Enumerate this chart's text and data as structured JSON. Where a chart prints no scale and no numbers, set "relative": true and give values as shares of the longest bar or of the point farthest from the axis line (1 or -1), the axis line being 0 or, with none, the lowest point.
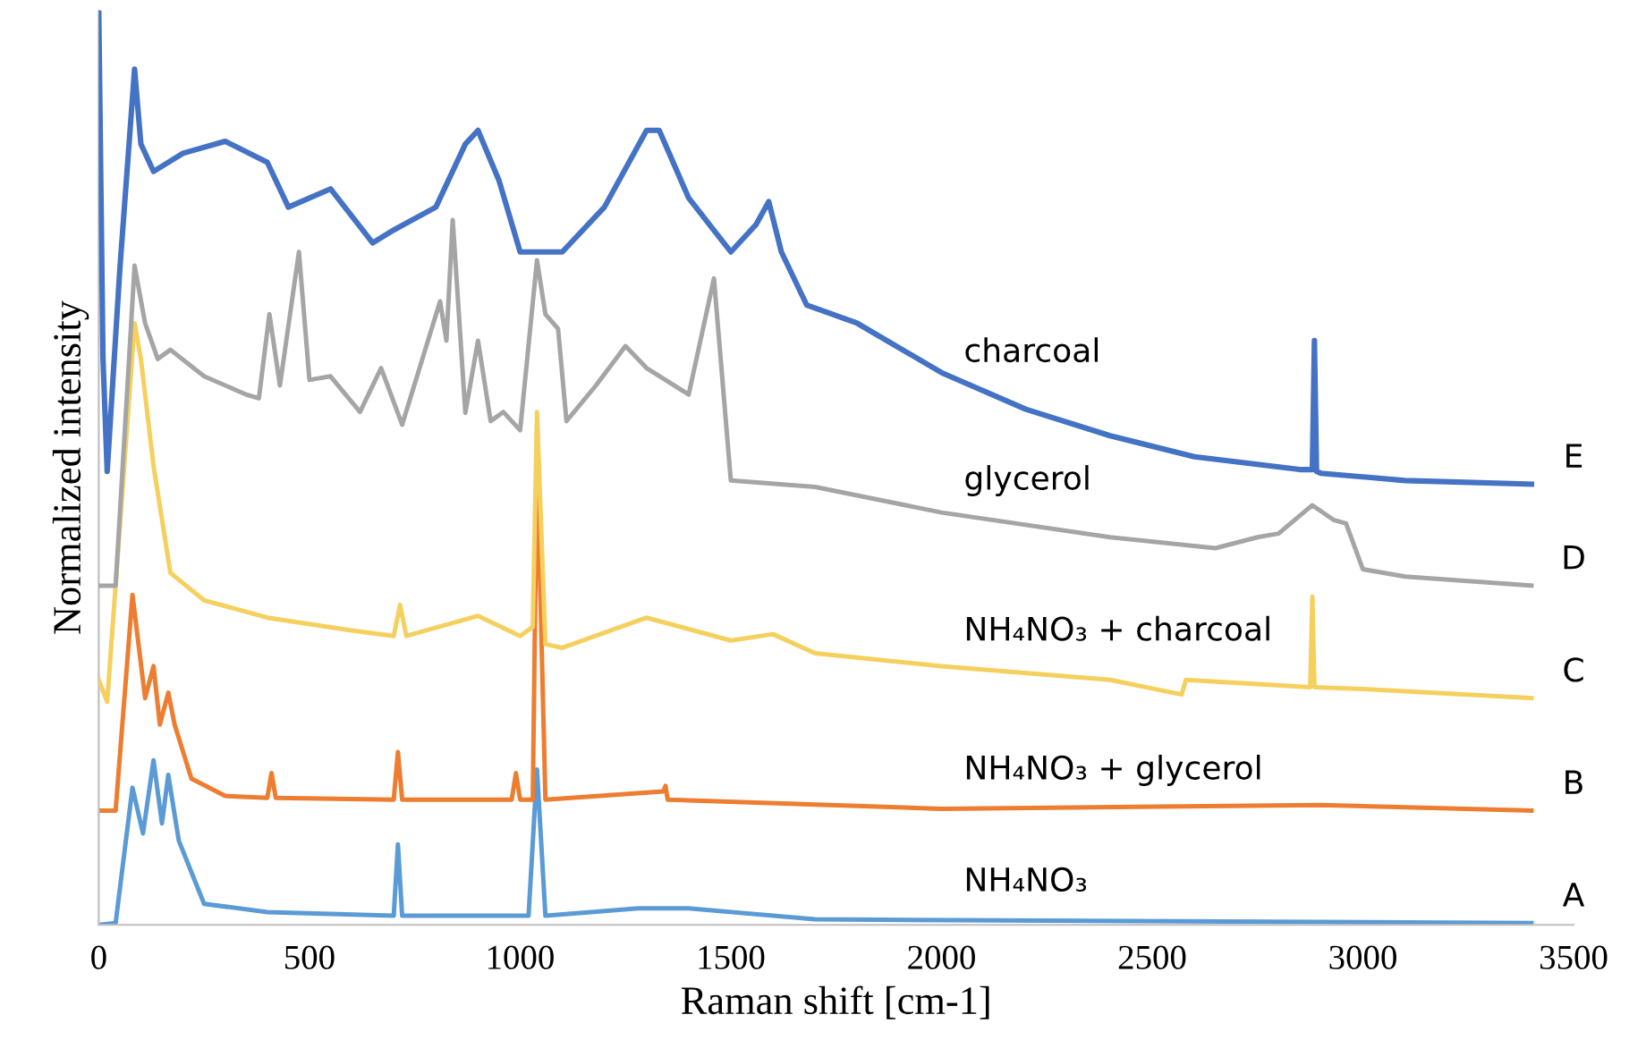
{
  "chart_data": {
    "type": "line",
    "relative": true,
    "xlabel": "Raman shift [cm-1]",
    "ylabel": "Normalized intensity",
    "xlim": [
      0,
      3500
    ],
    "xticks": [
      0,
      500,
      1000,
      1500,
      2000,
      2500,
      3000,
      3500
    ],
    "grid": false,
    "legend": false,
    "marker": "none",
    "line_style": "solid",
    "series": [
      {
        "name": "charcoal",
        "color": "#4472c4",
        "x": [
          0,
          10,
          20,
          50,
          85,
          100,
          130,
          200,
          300,
          400,
          450,
          550,
          650,
          700,
          800,
          870,
          900,
          950,
          1000,
          1100,
          1200,
          1300,
          1330,
          1400,
          1500,
          1560,
          1590,
          1620,
          1680,
          1800,
          2000,
          2200,
          2400,
          2600,
          2850,
          2880,
          2885,
          2890,
          2900,
          3100,
          3400
        ],
        "values": [
          1.0,
          0.62,
          0.496,
          0.717,
          0.936,
          0.854,
          0.824,
          0.844,
          0.857,
          0.834,
          0.785,
          0.805,
          0.746,
          0.76,
          0.785,
          0.854,
          0.869,
          0.814,
          0.736,
          0.736,
          0.785,
          0.869,
          0.869,
          0.795,
          0.736,
          0.766,
          0.791,
          0.736,
          0.678,
          0.658,
          0.604,
          0.564,
          0.535,
          0.512,
          0.498,
          0.498,
          0.639,
          0.496,
          0.494,
          0.486,
          0.482
        ]
      },
      {
        "name": "glycerol",
        "color": "#a5a5a5",
        "x": [
          0,
          40,
          85,
          110,
          140,
          170,
          250,
          350,
          380,
          405,
          430,
          475,
          500,
          550,
          620,
          670,
          720,
          810,
          825,
          840,
          870,
          900,
          930,
          960,
          1000,
          1040,
          1060,
          1090,
          1110,
          1180,
          1250,
          1300,
          1400,
          1460,
          1500,
          1700,
          2000,
          2400,
          2650,
          2750,
          2800,
          2880,
          2930,
          2960,
          3000,
          3100,
          3400
        ],
        "values": [
          0.371,
          0.371,
          0.721,
          0.658,
          0.619,
          0.629,
          0.6,
          0.58,
          0.576,
          0.668,
          0.59,
          0.736,
          0.596,
          0.6,
          0.561,
          0.609,
          0.547,
          0.682,
          0.639,
          0.771,
          0.56,
          0.639,
          0.551,
          0.561,
          0.541,
          0.727,
          0.668,
          0.652,
          0.551,
          0.59,
          0.633,
          0.609,
          0.58,
          0.707,
          0.486,
          0.479,
          0.451,
          0.424,
          0.412,
          0.424,
          0.428,
          0.459,
          0.443,
          0.439,
          0.389,
          0.381,
          0.371
        ]
      },
      {
        "name": "NH₄NO₃ + charcoal",
        "color": "#f5d05e",
        "x": [
          0,
          20,
          85,
          100,
          130,
          170,
          250,
          400,
          600,
          700,
          715,
          730,
          900,
          1000,
          1030,
          1040,
          1060,
          1100,
          1300,
          1500,
          1600,
          1700,
          2000,
          2400,
          2570,
          2580,
          2875,
          2880,
          2885,
          3000,
          3400
        ],
        "values": [
          0.268,
          0.244,
          0.658,
          0.619,
          0.502,
          0.385,
          0.355,
          0.336,
          0.322,
          0.316,
          0.35,
          0.316,
          0.338,
          0.316,
          0.326,
          0.561,
          0.307,
          0.303,
          0.336,
          0.311,
          0.318,
          0.297,
          0.283,
          0.268,
          0.252,
          0.268,
          0.26,
          0.359,
          0.26,
          0.258,
          0.248
        ]
      },
      {
        "name": "NH₄NO₃ + glycerol",
        "color": "#ed7d31",
        "x": [
          0,
          40,
          80,
          110,
          130,
          145,
          165,
          180,
          220,
          300,
          400,
          410,
          420,
          700,
          710,
          720,
          980,
          990,
          1000,
          1030,
          1040,
          1060,
          1340,
          1345,
          1350,
          2000,
          2900,
          3400
        ],
        "values": [
          0.125,
          0.125,
          0.361,
          0.248,
          0.283,
          0.219,
          0.254,
          0.219,
          0.16,
          0.141,
          0.139,
          0.166,
          0.139,
          0.137,
          0.189,
          0.137,
          0.137,
          0.166,
          0.137,
          0.137,
          0.512,
          0.137,
          0.146,
          0.152,
          0.137,
          0.127,
          0.131,
          0.125
        ]
      },
      {
        "name": "NH₄NO₃",
        "color": "#5b9bd5",
        "x": [
          0,
          40,
          80,
          105,
          130,
          150,
          165,
          190,
          250,
          400,
          700,
          710,
          720,
          1020,
          1040,
          1060,
          1280,
          1400,
          1700,
          3400
        ],
        "values": [
          0.0,
          0.002,
          0.15,
          0.1,
          0.18,
          0.111,
          0.164,
          0.092,
          0.023,
          0.014,
          0.01,
          0.088,
          0.01,
          0.01,
          0.17,
          0.01,
          0.018,
          0.018,
          0.006,
          0.002
        ]
      }
    ],
    "annotations": [
      "E",
      "D",
      "C",
      "B",
      "A"
    ]
  }
}
